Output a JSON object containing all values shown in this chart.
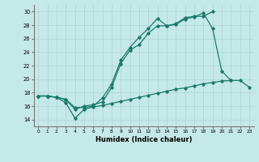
{
  "title": "",
  "xlabel": "Humidex (Indice chaleur)",
  "xlim": [
    -0.5,
    23.5
  ],
  "ylim": [
    13,
    31
  ],
  "yticks": [
    14,
    16,
    18,
    20,
    22,
    24,
    26,
    28,
    30
  ],
  "xticks": [
    0,
    1,
    2,
    3,
    4,
    5,
    6,
    7,
    8,
    9,
    10,
    11,
    12,
    13,
    14,
    15,
    16,
    17,
    18,
    19,
    20,
    21,
    22,
    23
  ],
  "background_color": "#c5e8e8",
  "grid_color": "#aed4d4",
  "line_color": "#1a7a6a",
  "line1_x": [
    0,
    1,
    2,
    3,
    4,
    5,
    6,
    7,
    8,
    9,
    10,
    11,
    12,
    13,
    14,
    15,
    16,
    17,
    18,
    19
  ],
  "line1_y": [
    17.5,
    17.5,
    17.3,
    17.0,
    15.8,
    15.8,
    16.0,
    17.2,
    19.3,
    22.8,
    24.7,
    26.2,
    27.5,
    29.0,
    27.9,
    28.2,
    29.1,
    29.3,
    29.3,
    30.0
  ],
  "line2_x": [
    0,
    1,
    2,
    3,
    4,
    5,
    6,
    7,
    8,
    9,
    10,
    11,
    12,
    13,
    14,
    15,
    16,
    17,
    18,
    19,
    20,
    21
  ],
  "line2_y": [
    17.5,
    17.5,
    17.3,
    17.0,
    15.5,
    16.0,
    16.2,
    16.6,
    18.8,
    22.3,
    24.3,
    25.1,
    26.8,
    27.9,
    27.9,
    28.1,
    28.9,
    29.2,
    29.8,
    27.5,
    21.2,
    19.8
  ],
  "line3_x": [
    0,
    1,
    2,
    3,
    4,
    5,
    6,
    7,
    8,
    9,
    10,
    11,
    12,
    13,
    14,
    15,
    16,
    17,
    18,
    19,
    20,
    21,
    22,
    23
  ],
  "line3_y": [
    17.5,
    17.5,
    17.3,
    16.5,
    14.2,
    15.5,
    15.9,
    16.1,
    16.4,
    16.7,
    17.0,
    17.3,
    17.6,
    17.9,
    18.2,
    18.5,
    18.7,
    19.0,
    19.3,
    19.5,
    19.7,
    19.8,
    19.8,
    18.8
  ]
}
